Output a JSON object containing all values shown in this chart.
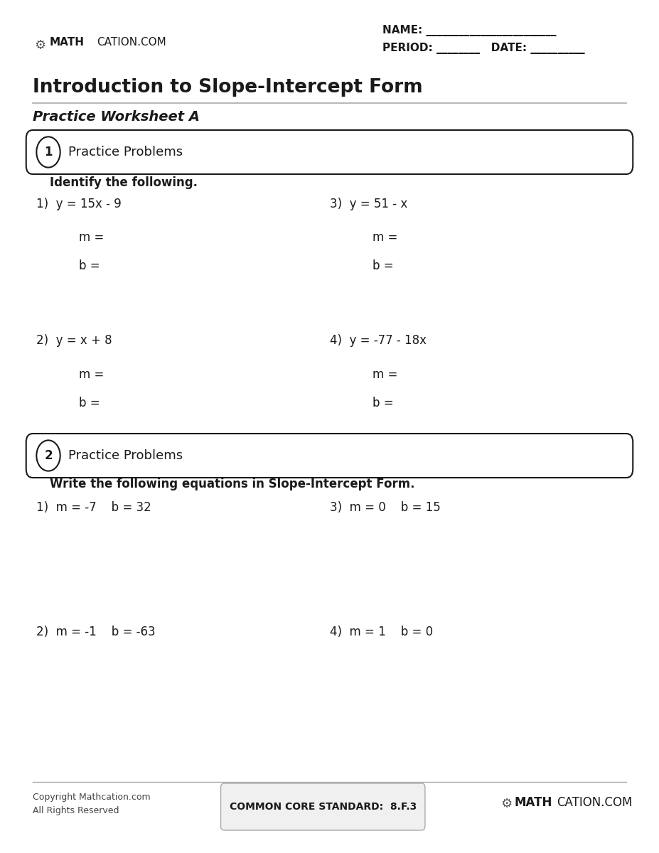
{
  "title": "Introduction to Slope-Intercept Form",
  "subtitle": "Practice Worksheet A",
  "header_logo": "MATHCATION.COM",
  "name_label": "NAME:",
  "period_label": "PERIOD:",
  "date_label": "DATE:",
  "section1_num": "1",
  "section1_title": "Practice Problems",
  "section1_instruction": "Identify the following.",
  "section2_num": "2",
  "section2_title": "Practice Problems",
  "section2_instruction": "Write the following equations in Slope-Intercept Form.",
  "problems_s1": [
    {
      "num": "1)",
      "eq": "y = 15x - 9",
      "col": 0
    },
    {
      "num": "3)",
      "eq": "y = 51 - x",
      "col": 1
    },
    {
      "num": "2)",
      "eq": "y = x + 8",
      "col": 0
    },
    {
      "num": "4)",
      "eq": "y = -77 - 18x",
      "col": 1
    }
  ],
  "problems_s2": [
    {
      "num": "1)",
      "eq": "m = -7    b = 32",
      "col": 0
    },
    {
      "num": "3)",
      "eq": "m = 0    b = 15",
      "col": 1
    },
    {
      "num": "2)",
      "eq": "m = -1    b = -63",
      "col": 0
    },
    {
      "num": "4)",
      "eq": "m = 1    b = 0",
      "col": 1
    }
  ],
  "footer_copyright": "Copyright Mathcation.com\nAll Rights Reserved",
  "footer_standard": "COMMON CORE STANDARD:  8.F.3",
  "footer_logo": "MATHCATION.COM",
  "bg_color": "#ffffff",
  "text_color": "#1a1a1a",
  "section_box_color": "#1a1a1a",
  "line_color": "#cccccc",
  "font_main": "DejaVu Sans",
  "page_width": 9.27,
  "page_height": 12.0
}
